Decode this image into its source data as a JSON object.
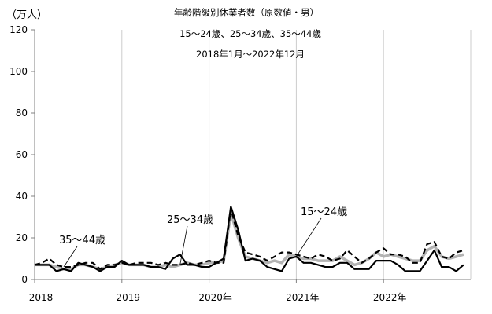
{
  "chart_data": {
    "type": "line",
    "title": "年齢階級別休業者数（原数値・男）",
    "subtitle_lines": [
      "15～24歳、25～34歳、35～44歳",
      "2018年1月～2022年12月"
    ],
    "ylabel": "（万人）",
    "ylim": [
      0,
      120
    ],
    "y_ticks": [
      0,
      20,
      40,
      60,
      80,
      100,
      120
    ],
    "x_tick_labels": [
      "2018",
      "2019",
      "2020年",
      "2021年",
      "2022年"
    ],
    "x": [
      "2018-01",
      "2018-02",
      "2018-03",
      "2018-04",
      "2018-05",
      "2018-06",
      "2018-07",
      "2018-08",
      "2018-09",
      "2018-10",
      "2018-11",
      "2018-12",
      "2019-01",
      "2019-02",
      "2019-03",
      "2019-04",
      "2019-05",
      "2019-06",
      "2019-07",
      "2019-08",
      "2019-09",
      "2019-10",
      "2019-11",
      "2019-12",
      "2020-01",
      "2020-02",
      "2020-03",
      "2020-04",
      "2020-05",
      "2020-06",
      "2020-07",
      "2020-08",
      "2020-09",
      "2020-10",
      "2020-11",
      "2020-12",
      "2021-01",
      "2021-02",
      "2021-03",
      "2021-04",
      "2021-05",
      "2021-06",
      "2021-07",
      "2021-08",
      "2021-09",
      "2021-10",
      "2021-11",
      "2021-12",
      "2022-01",
      "2022-02",
      "2022-03",
      "2022-04",
      "2022-05",
      "2022-06",
      "2022-07",
      "2022-08",
      "2022-09",
      "2022-10",
      "2022-11",
      "2022-12"
    ],
    "grid": "vertical-at-years",
    "series": [
      {
        "name": "15～24歳",
        "style": "solid-black",
        "values": [
          7,
          7,
          7,
          4,
          5,
          4,
          8,
          7,
          6,
          4,
          6,
          6,
          9,
          7,
          7,
          7,
          6,
          6,
          5,
          10,
          12,
          7,
          7,
          6,
          6,
          8,
          10,
          35,
          24,
          9,
          10,
          9,
          6,
          5,
          4,
          10,
          11,
          8,
          8,
          7,
          6,
          6,
          8,
          8,
          5,
          5,
          5,
          9,
          9,
          9,
          7,
          4,
          4,
          4,
          9,
          14,
          6,
          6,
          4,
          7
        ]
      },
      {
        "name": "25～34歳",
        "style": "gray-thick",
        "values": [
          7,
          7,
          7,
          6,
          5,
          5,
          7,
          7,
          6,
          5,
          6,
          7,
          8,
          7,
          7,
          7,
          6,
          6,
          7,
          6,
          7,
          8,
          7,
          7,
          8,
          8,
          9,
          32,
          20,
          11,
          10,
          9,
          8,
          9,
          8,
          12,
          11,
          10,
          10,
          9,
          9,
          9,
          11,
          9,
          7,
          8,
          10,
          13,
          11,
          12,
          11,
          10,
          9,
          9,
          14,
          16,
          11,
          10,
          11,
          12
        ]
      },
      {
        "name": "35～44歳",
        "style": "dashed-black",
        "values": [
          7,
          8,
          10,
          7,
          6,
          6,
          7,
          8,
          8,
          5,
          7,
          7,
          8,
          7,
          8,
          8,
          8,
          7,
          8,
          7,
          7,
          8,
          7,
          8,
          9,
          8,
          8,
          34,
          21,
          13,
          12,
          11,
          9,
          11,
          13,
          13,
          12,
          11,
          10,
          12,
          11,
          9,
          10,
          14,
          11,
          8,
          10,
          13,
          15,
          12,
          12,
          11,
          8,
          8,
          17,
          18,
          11,
          10,
          13,
          14
        ]
      }
    ],
    "annotations": [
      {
        "text": "35～44歳",
        "target_series": "35～44歳",
        "target_x": "2018-05"
      },
      {
        "text": "25～34歳",
        "target_series": "25～34歳",
        "target_x": "2019-09"
      },
      {
        "text": "15～24歳",
        "target_series": "15～24歳",
        "target_x": "2021-01"
      }
    ],
    "colors": {
      "series_15_24": "#000000",
      "series_25_34": "#b3b3b3",
      "series_35_44": "#000000",
      "gridline": "#cccccc",
      "axis": "#808080"
    }
  }
}
